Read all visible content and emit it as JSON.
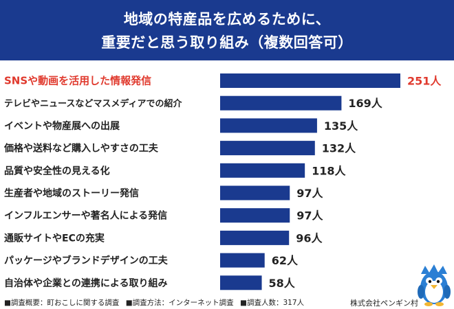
{
  "header": {
    "title_line1": "地域の特産品を広めるために、",
    "title_line2": "重要だと思う取り組み（複数回答可）"
  },
  "colors": {
    "header_bg": "#1a3a8f",
    "bar": "#1a3a8f",
    "highlight": "#e03a2e",
    "text": "#222222"
  },
  "chart_data": {
    "type": "bar",
    "orientation": "horizontal",
    "title": "地域の特産品を広めるために、重要だと思う取り組み（複数回答可）",
    "unit": "人",
    "categories": [
      "SNSや動画を活用した情報発信",
      "テレビやニュースなどマスメディアでの紹介",
      "イベントや物産展への出展",
      "価格や送料など購入しやすさの工夫",
      "品質や安全性の見える化",
      "生産者や地域のストーリー発信",
      "インフルエンサーや著名人による発信",
      "通販サイトやECの充実",
      "パッケージやブランドデザインの工夫",
      "自治体や企業との連携による取り組み"
    ],
    "values": [
      251,
      169,
      135,
      132,
      118,
      97,
      97,
      96,
      62,
      58
    ],
    "value_labels": [
      "251人",
      "169人",
      "135人",
      "132人",
      "118人",
      "97人",
      "97人",
      "96人",
      "62人",
      "58人"
    ],
    "highlight_index": 0
  },
  "footer": {
    "item1": "■調査概要：町おこしに関する調査",
    "item2": "■調査方法：インターネット調査",
    "item3": "■調査人数：317人",
    "company": "株式会社ペンギン村"
  },
  "mascot": {
    "icon": "penguin-mascot-icon"
  }
}
